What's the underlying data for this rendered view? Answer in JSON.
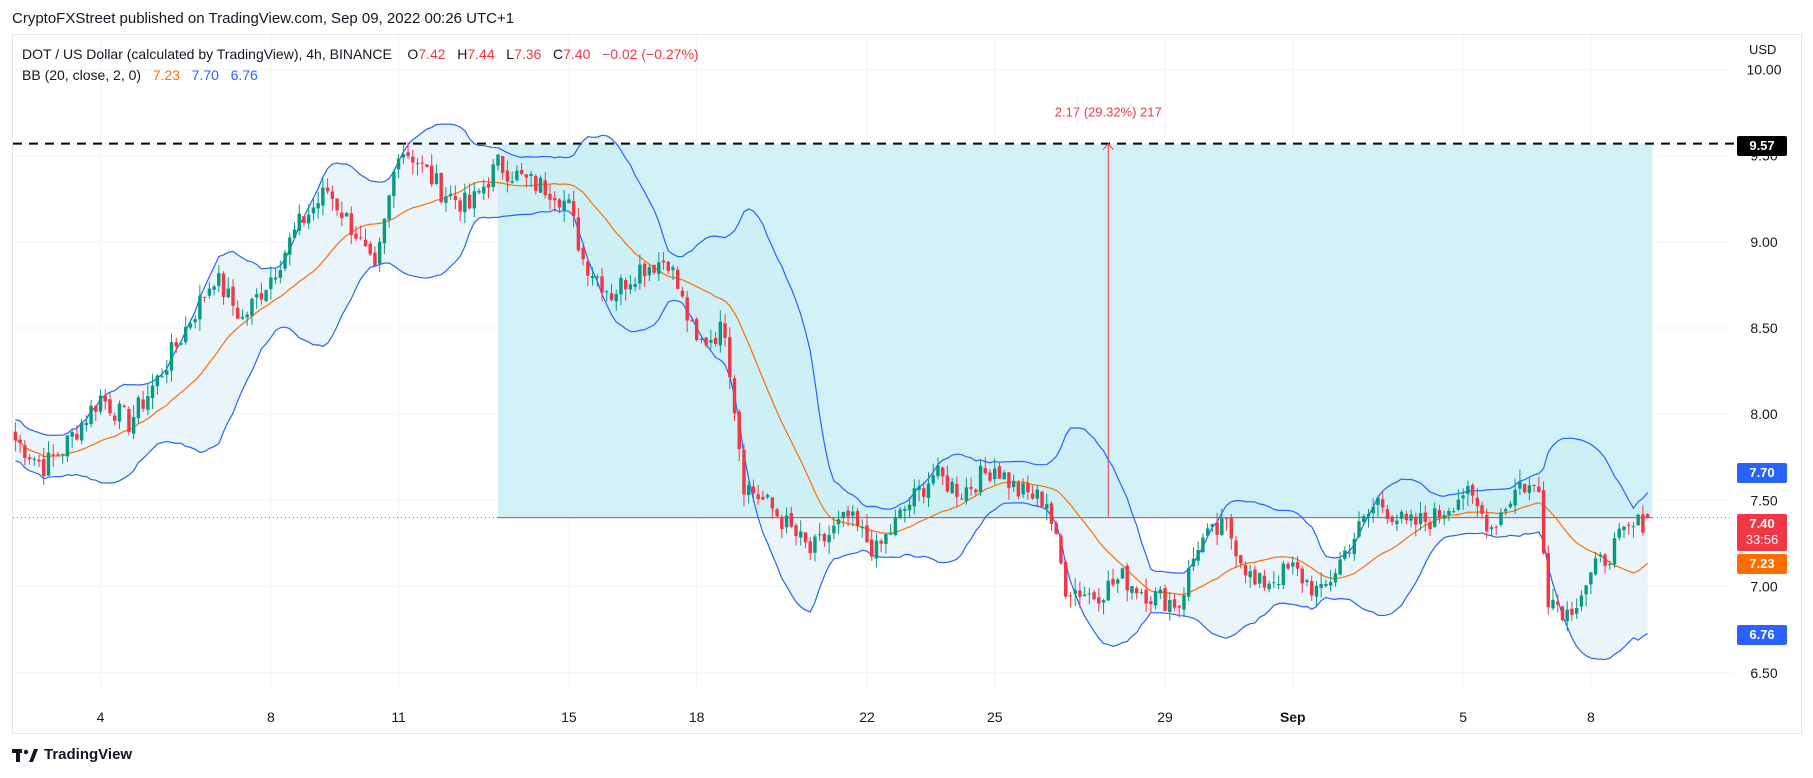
{
  "publisher": "CryptoFXStreet published on TradingView.com, Sep 09, 2022 00:26 UTC+1",
  "legend": {
    "symbol": "DOT / US Dollar (calculated by TradingView), 4h, BINANCE",
    "o_label": "O",
    "o_value": "7.42",
    "h_label": "H",
    "h_value": "7.44",
    "l_label": "L",
    "l_value": "7.36",
    "c_label": "C",
    "c_value": "7.40",
    "change": "−0.02 (−0.27%)",
    "bb_label": "BB (20, close, 2, 0)",
    "bb_mid": "7.23",
    "bb_upper": "7.70",
    "bb_lower": "6.76"
  },
  "currency": "USD",
  "footer": {
    "brand": "TradingView",
    "logo_icon": "tradingview-logo-icon"
  },
  "colors": {
    "up": "#089981",
    "down": "#f23645",
    "bb_mid": "#ff6d00",
    "bb_band": "#2962ff",
    "band_fill": "#eaf4fb",
    "target_zone": "#c8eef5",
    "stop_line": "#f23645",
    "grid": "#f0f3fa"
  },
  "price_tags": {
    "level": "9.57",
    "bb_upper": "7.70",
    "close": "7.40",
    "countdown": "33:56",
    "bb_mid": "7.23",
    "bb_lower": "6.76"
  },
  "annotation": {
    "measure_label": "2.17 (29.32%) 217"
  },
  "chart_data": {
    "type": "candlestick",
    "timeframe": "4h",
    "y_axis": {
      "ticks": [
        "6.50",
        "7.00",
        "7.50",
        "8.00",
        "8.50",
        "9.00",
        "9.50",
        "10.00"
      ],
      "range": [
        6.4,
        10.2
      ]
    },
    "x_axis": {
      "ticks": [
        "4",
        "8",
        "11",
        "15",
        "18",
        "22",
        "25",
        "29",
        "Sep",
        "5",
        "8"
      ],
      "tick_bars": [
        18,
        54,
        81,
        117,
        144,
        180,
        207,
        243,
        270,
        306,
        333
      ],
      "bars": 346
    },
    "horizontal_levels": [
      {
        "value": 9.57,
        "style": "dashed"
      }
    ],
    "target_zone": {
      "from_bar": 102,
      "to_bar": 346,
      "low": 7.4,
      "high": 9.57
    },
    "measure": {
      "from": 7.4,
      "to": 9.57,
      "change": 2.17,
      "percent": 29.32,
      "bars": 217
    },
    "ohlc_anchor": [
      [
        0,
        7.85
      ],
      [
        6,
        7.7
      ],
      [
        10,
        7.8
      ],
      [
        18,
        8.1
      ],
      [
        24,
        7.95
      ],
      [
        30,
        8.2
      ],
      [
        36,
        8.5
      ],
      [
        42,
        8.8
      ],
      [
        48,
        8.55
      ],
      [
        54,
        8.8
      ],
      [
        60,
        9.1
      ],
      [
        66,
        9.3
      ],
      [
        72,
        9.05
      ],
      [
        76,
        8.8
      ],
      [
        81,
        9.55
      ],
      [
        84,
        9.5
      ],
      [
        90,
        9.3
      ],
      [
        96,
        9.2
      ],
      [
        102,
        9.45
      ],
      [
        108,
        9.35
      ],
      [
        114,
        9.3
      ],
      [
        117,
        9.2
      ],
      [
        120,
        8.9
      ],
      [
        126,
        8.7
      ],
      [
        132,
        8.85
      ],
      [
        138,
        8.9
      ],
      [
        144,
        8.4
      ],
      [
        150,
        8.5
      ],
      [
        154,
        7.6
      ],
      [
        160,
        7.45
      ],
      [
        168,
        7.2
      ],
      [
        176,
        7.4
      ],
      [
        182,
        7.2
      ],
      [
        188,
        7.45
      ],
      [
        194,
        7.65
      ],
      [
        200,
        7.55
      ],
      [
        207,
        7.7
      ],
      [
        212,
        7.55
      ],
      [
        218,
        7.5
      ],
      [
        222,
        7.0
      ],
      [
        228,
        6.95
      ],
      [
        234,
        7.05
      ],
      [
        240,
        6.95
      ],
      [
        246,
        6.9
      ],
      [
        250,
        7.25
      ],
      [
        256,
        7.35
      ],
      [
        262,
        7.0
      ],
      [
        270,
        7.1
      ],
      [
        276,
        6.95
      ],
      [
        282,
        7.25
      ],
      [
        288,
        7.5
      ],
      [
        294,
        7.35
      ],
      [
        300,
        7.4
      ],
      [
        306,
        7.55
      ],
      [
        312,
        7.35
      ],
      [
        318,
        7.6
      ],
      [
        322,
        7.55
      ],
      [
        324,
        6.95
      ],
      [
        328,
        6.85
      ],
      [
        334,
        7.1
      ],
      [
        340,
        7.3
      ],
      [
        345,
        7.4
      ]
    ],
    "bollinger": {
      "period": 20,
      "source": "close",
      "stddev": 2,
      "last": {
        "middle": 7.23,
        "upper": 7.7,
        "lower": 6.76
      }
    }
  }
}
